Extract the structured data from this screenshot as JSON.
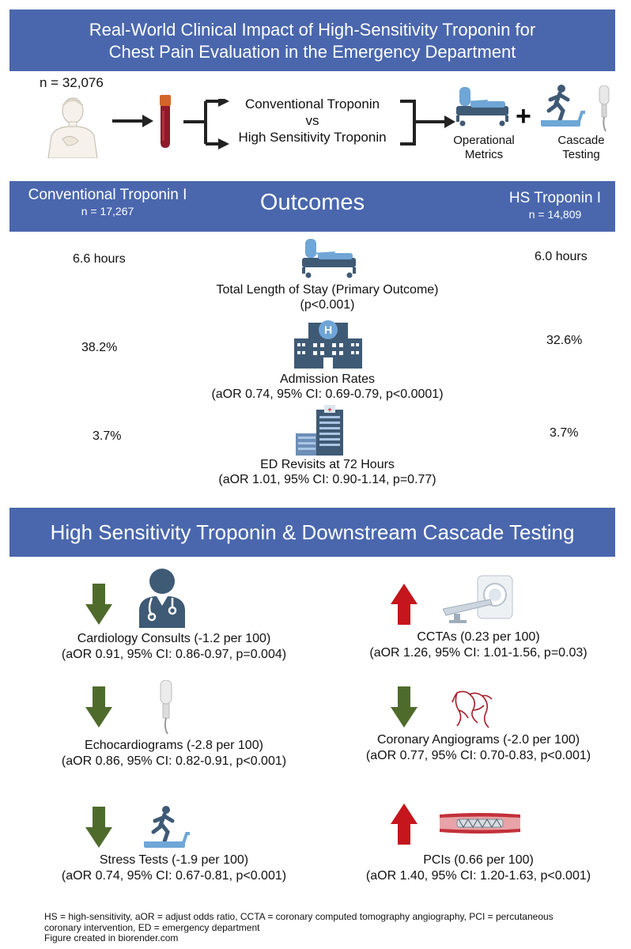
{
  "title": {
    "line1": "Real-World Clinical Impact of High-Sensitivity Troponin for",
    "line2": "Chest Pain Evaluation in the Emergency Department"
  },
  "design": {
    "n_label": "n = 32,076",
    "comparison_line1": "Conventional Troponin",
    "comparison_line2": "vs",
    "comparison_line3": "High Sensitivity Troponin",
    "metric1_line1": "Operational",
    "metric1_line2": "Metrics",
    "metric2_line1": "Cascade",
    "metric2_line2": "Testing"
  },
  "outcomes_header": {
    "left_title": "Conventional Troponin I",
    "left_n": "n = 17,267",
    "center_title": "Outcomes",
    "right_title": "HS Troponin I",
    "right_n": "n = 14,809"
  },
  "outcomes": [
    {
      "left": "6.6 hours",
      "right": "6.0 hours",
      "label": "Total Length of Stay (Primary Outcome)",
      "stats": "(p<0.001)",
      "icon": "hospital-bed-icon"
    },
    {
      "left": "38.2%",
      "right": "32.6%",
      "label": "Admission Rates",
      "stats": "(aOR 0.74, 95% CI: 0.69-0.79, p<0.0001)",
      "icon": "hospital-building-icon"
    },
    {
      "left": "3.7%",
      "right": "3.7%",
      "label": "ED Revisits at 72 Hours",
      "stats": "(aOR 1.01, 95% CI: 0.90-1.14, p=0.77)",
      "icon": "hospital-complex-icon"
    }
  ],
  "cascade_header": "High Sensitivity Troponin & Downstream Cascade Testing",
  "cascade": {
    "left": [
      {
        "direction": "down",
        "label": "Cardiology Consults (-1.2 per 100)",
        "stats": "(aOR 0.91, 95% CI: 0.86-0.97, p=0.004)",
        "icon": "doctor-icon"
      },
      {
        "direction": "down",
        "label": "Echocardiograms (-2.8 per 100)",
        "stats": "(aOR 0.86, 95% CI: 0.82-0.91, p<0.001)",
        "icon": "ultrasound-probe-icon"
      },
      {
        "direction": "down",
        "label": "Stress Tests (-1.9 per 100)",
        "stats": "(aOR 0.74, 95% CI: 0.67-0.81, p<0.001)",
        "icon": "treadmill-icon"
      }
    ],
    "right": [
      {
        "direction": "up",
        "label": "CCTAs (0.23 per 100)",
        "stats": "(aOR 1.26, 95% CI: 1.01-1.56, p=0.03)",
        "icon": "ct-scanner-icon"
      },
      {
        "direction": "down",
        "label": "Coronary Angiograms (-2.0 per 100)",
        "stats": "(aOR 0.77, 95% CI: 0.70-0.83, p<0.001)",
        "icon": "coronary-vessels-icon"
      },
      {
        "direction": "up",
        "label": "PCIs (0.66 per 100)",
        "stats": "(aOR 1.40, 95% CI: 1.20-1.63, p<0.001)",
        "icon": "stent-icon"
      }
    ]
  },
  "footnote": {
    "line1": "HS = high-sensitivity, aOR = adjust odds ratio, CCTA = coronary computed tomography angiography, PCI = percutaneous",
    "line2": "coronary intervention, ED = emergency department",
    "line3": "Figure created in biorender.com"
  },
  "colors": {
    "banner": "#4a67ad",
    "arrow_down": "#4f6b2c",
    "arrow_up": "#c4161c",
    "icon_blue": "#6fa6d6",
    "icon_dark": "#3f5a75"
  }
}
